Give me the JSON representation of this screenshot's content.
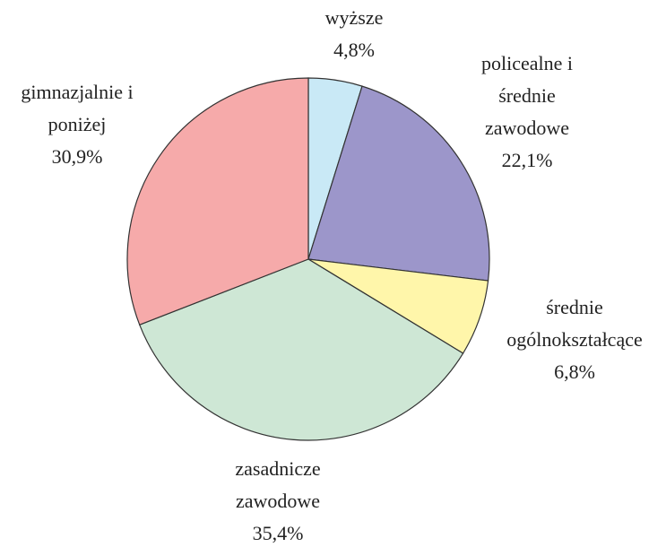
{
  "chart_data": {
    "type": "pie",
    "categories": [
      [
        "wyższe"
      ],
      [
        "policealne i",
        "średnie",
        "zawodowe"
      ],
      [
        "średnie",
        "ogólnokształcące"
      ],
      [
        "zasadnicze",
        "zawodowe"
      ],
      [
        "gimnazjalnie i",
        "poniżej"
      ]
    ],
    "values": [
      4.8,
      22.1,
      6.8,
      35.4,
      30.9
    ],
    "value_labels": [
      "4,8%",
      "22,1%",
      "6,8%",
      "35,4%",
      "30,9%"
    ],
    "colors": [
      "#c9e9f6",
      "#9c96ca",
      "#fff6aa",
      "#cee7d5",
      "#f6aaaa"
    ]
  }
}
